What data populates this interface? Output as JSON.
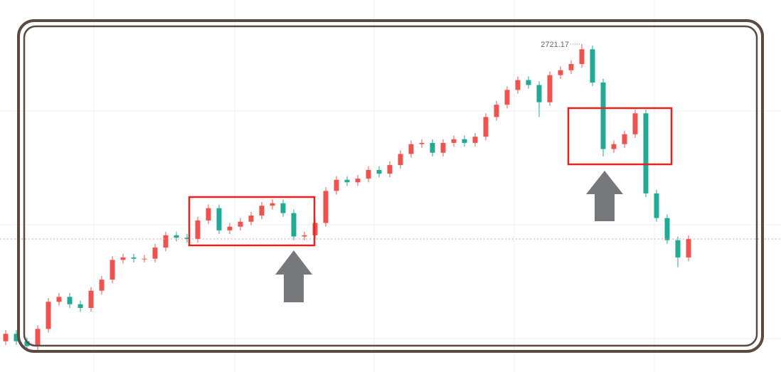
{
  "chart_data": {
    "type": "candlestick",
    "annotation": "2721.17",
    "up_color": "#ef5350",
    "down_color": "#22ab94",
    "ylim": [
      2455,
      2757
    ],
    "open": [
      2480,
      2486,
      2480,
      2476,
      2490,
      2512,
      2516,
      2510,
      2507,
      2521,
      2530,
      2546,
      2548,
      2547,
      2547,
      2556,
      2566,
      2564,
      2563,
      2578,
      2588,
      2570,
      2573,
      2577,
      2582,
      2590,
      2592,
      2584,
      2565,
      2566,
      2576,
      2602,
      2611,
      2609,
      2612,
      2619,
      2616,
      2623,
      2632,
      2640,
      2641,
      2633,
      2641,
      2644,
      2641,
      2646,
      2662,
      2672,
      2684,
      2692,
      2688,
      2674,
      2696,
      2700,
      2705,
      2717,
      2690,
      2636,
      2640,
      2648,
      2665,
      2600,
      2580,
      2562,
      2548
    ],
    "high": [
      2489,
      2489,
      2483,
      2493,
      2515,
      2519,
      2519,
      2513,
      2524,
      2533,
      2549,
      2551,
      2551,
      2550,
      2559,
      2569,
      2569,
      2567,
      2581,
      2591,
      2591,
      2576,
      2580,
      2585,
      2593,
      2595,
      2595,
      2587,
      2569,
      2579,
      2605,
      2614,
      2614,
      2615,
      2622,
      2622,
      2626,
      2635,
      2643,
      2644,
      2644,
      2644,
      2647,
      2647,
      2649,
      2665,
      2675,
      2687,
      2695,
      2695,
      2691,
      2699,
      2703,
      2708,
      2721.17,
      2720,
      2693,
      2643,
      2651,
      2668,
      2668,
      2603,
      2583,
      2565,
      2566
    ],
    "low": [
      2477,
      2477,
      2473,
      2473,
      2487,
      2509,
      2507,
      2504,
      2504,
      2518,
      2527,
      2543,
      2544,
      2544,
      2544,
      2553,
      2561,
      2560,
      2560,
      2575,
      2567,
      2567,
      2570,
      2574,
      2579,
      2587,
      2581,
      2562,
      2562,
      2563,
      2573,
      2599,
      2606,
      2606,
      2609,
      2613,
      2613,
      2620,
      2629,
      2637,
      2630,
      2630,
      2638,
      2638,
      2638,
      2643,
      2659,
      2669,
      2681,
      2685,
      2662,
      2671,
      2693,
      2697,
      2702,
      2687,
      2630,
      2633,
      2637,
      2645,
      2597,
      2577,
      2559,
      2540,
      2545
    ],
    "close": [
      2486,
      2480,
      2476,
      2490,
      2512,
      2516,
      2510,
      2507,
      2521,
      2530,
      2546,
      2548,
      2547,
      2547,
      2556,
      2566,
      2564,
      2563,
      2578,
      2588,
      2570,
      2573,
      2577,
      2582,
      2590,
      2592,
      2584,
      2565,
      2566,
      2576,
      2602,
      2611,
      2609,
      2612,
      2619,
      2616,
      2623,
      2632,
      2640,
      2641,
      2633,
      2641,
      2644,
      2641,
      2646,
      2662,
      2672,
      2684,
      2692,
      2688,
      2674,
      2696,
      2700,
      2705,
      2717,
      2690,
      2636,
      2640,
      2648,
      2665,
      2600,
      2580,
      2562,
      2548,
      2563
    ]
  }
}
